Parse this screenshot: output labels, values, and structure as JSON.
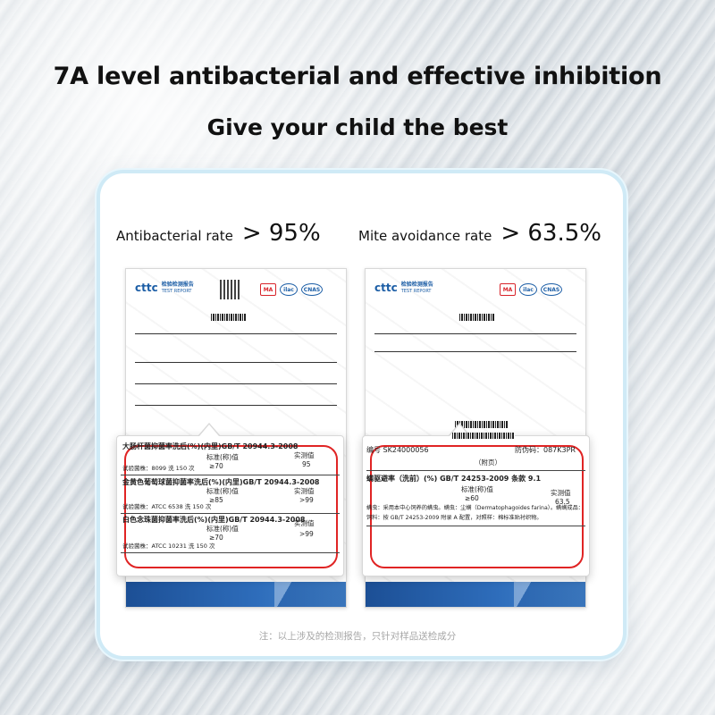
{
  "headline": {
    "line1": "7A level antibacterial and effective inhibition",
    "line2": "Give your child the best"
  },
  "rates": [
    {
      "label": "Antibacterial rate",
      "value": "> 95%"
    },
    {
      "label": "Mite avoidance rate",
      "value": "> 63.5%"
    }
  ],
  "report_header": {
    "logo": "cttc",
    "logo_cn": "检验检测报告",
    "logo_en": "TEST REPORT",
    "seals": [
      "MA",
      "ilac",
      "CNAS"
    ]
  },
  "zoom_antibacterial": {
    "row1_title": "大肠杆菌抑菌率洗后(%)(内里)GB/T 20944.3-2008",
    "row1_std_label": "标准(称)值",
    "row1_std": "≥70",
    "row1_measured_label": "实测值",
    "row1_measured": "95",
    "row1_note": "试验菌株：8099  洗 150 次",
    "row2_title": "金黄色葡萄球菌抑菌率洗后(%)(内里)GB/T 20944.3-2008",
    "row2_std_label": "标准(称)值",
    "row2_std": "≥85",
    "row2_measured_label": "实测值",
    "row2_measured": ">99",
    "row2_note": "试验菌株：ATCC 6538  洗 150 次",
    "row3_title": "白色念珠菌抑菌率洗后(%)(内里)GB/T 20944.3-2008",
    "row3_std_label": "标准(称)值",
    "row3_std": "≥70",
    "row3_measured_label": "实测值",
    "row3_measured": ">99",
    "row3_note": "试验菌株：ATCC 10231  洗 150 次"
  },
  "zoom_mite": {
    "report_no_label": "编号 SK24000056",
    "anti_fake": "防伪码：087K3PR",
    "appendix": "（附页）",
    "row_title": "螨驱避率（洗前）(%)   GB/T 24253-2009  条款 9.1",
    "std_label": "标准(称)值",
    "std": "≥60",
    "measured_label": "实测值",
    "measured": "63.5",
    "note1": "螨虫：采用本中心饲养的螨虫。螨虫：尘螨（Dermatophagoides farina）。螨螨成品：",
    "note2": "饲料：按 GB/T 24253-2009 附录 A 配置，对照样：棉标准贴衬织物。"
  },
  "footnote": "注：以上涉及的检测报告，只针对样品送检成分"
}
